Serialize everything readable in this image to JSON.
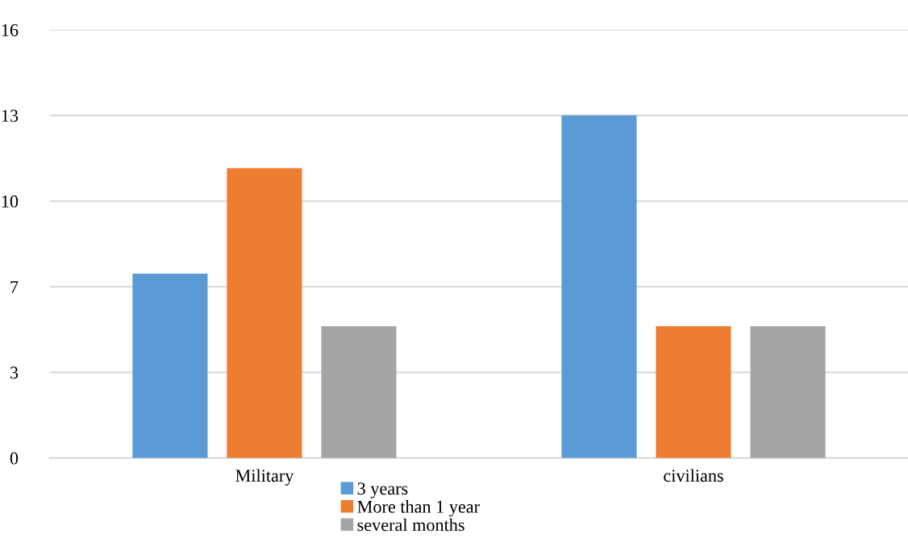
{
  "chart_data": {
    "type": "bar",
    "categories": [
      "Military",
      "civilians"
    ],
    "series": [
      {
        "name": "3 years",
        "color": "#5b9bd5",
        "values": [
          7,
          13
        ]
      },
      {
        "name": "More than 1 year",
        "color": "#ed7d31",
        "values": [
          11,
          5
        ]
      },
      {
        "name": "several months",
        "color": "#a5a5a5",
        "values": [
          5,
          5
        ]
      }
    ],
    "ylim": [
      0,
      16.25
    ],
    "yticks": [
      0,
      {
        "value": 3.25,
        "label": "3"
      },
      {
        "value": 6.5,
        "label": "7"
      },
      {
        "value": 9.75,
        "label": "10"
      },
      13,
      {
        "value": 16.25,
        "label": "16"
      }
    ],
    "grid": "y",
    "legend": "bottom"
  }
}
